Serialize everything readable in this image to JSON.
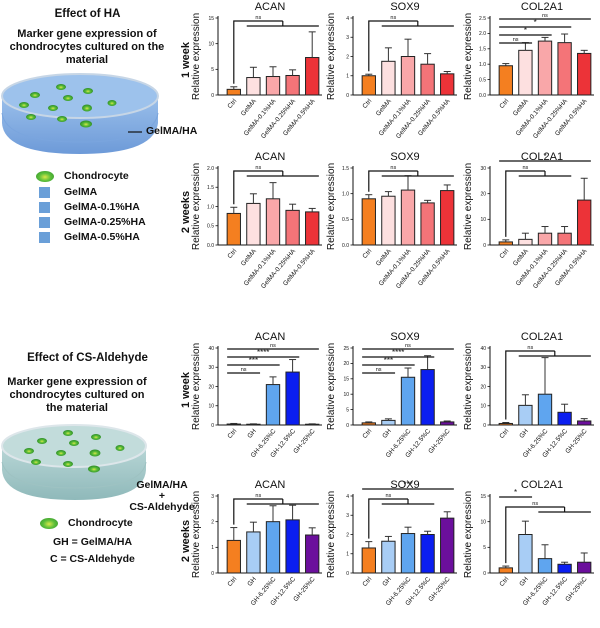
{
  "sections": [
    {
      "title": "Effect of HA",
      "subtitle": "Marker gene expression of chondrocytes cultured on the material",
      "dish_label": "GelMA/HA",
      "legend": [
        {
          "icon": "chondrocyte-icon",
          "label": "Chondrocyte"
        },
        {
          "icon": "square-icon",
          "label": "GelMA"
        },
        {
          "icon": "square-icon",
          "label": "GelMA-0.1%HA"
        },
        {
          "icon": "square-icon",
          "label": "GelMA-0.25%HA"
        },
        {
          "icon": "square-icon",
          "label": "GelMA-0.5%HA"
        }
      ],
      "row_labels": [
        "1 week",
        "2 weeks"
      ]
    },
    {
      "title": "Effect of CS-Aldehyde",
      "subtitle": "Marker gene expression of chondrocytes cultured on the material",
      "dish_label_lines": [
        "GelMA/HA",
        "+",
        "CS-Aldehyde"
      ],
      "legend": [
        {
          "icon": "chondrocyte-icon",
          "label": "Chondrocyte"
        }
      ],
      "definitions": [
        "GH = GelMA/HA",
        "C = CS-Aldehyde"
      ],
      "row_labels": [
        "1 week",
        "2 weeks"
      ]
    }
  ],
  "colors": {
    "ha_groups": [
      "#f47f20",
      "#fde0e0",
      "#f9a7a9",
      "#f47478",
      "#ec3338"
    ],
    "cs_groups": [
      "#f47f20",
      "#a8cdf5",
      "#5fa5ef",
      "#0b1ef0",
      "#6b0f9c"
    ]
  },
  "chart_data": [
    {
      "id": "ha-1w-acan",
      "type": "bar",
      "title": "ACAN",
      "ylabel": "Relative expression",
      "categories": [
        "Ctrl",
        "GelMA",
        "GelMA-0.1%HA",
        "GelMA-0.25%HA",
        "GelMA-0.5%HA"
      ],
      "values": [
        1.1,
        3.4,
        3.6,
        3.8,
        7.3
      ],
      "errors": [
        0.5,
        2.0,
        1.9,
        1.1,
        5.0
      ],
      "ylim": [
        0,
        15
      ],
      "yticks": [
        0,
        5,
        10,
        15
      ],
      "palette": "ha_groups",
      "annotations": [
        {
          "type": "bracket-group",
          "from": 0,
          "to": [
            1,
            4
          ],
          "label": "ns"
        }
      ]
    },
    {
      "id": "ha-1w-sox9",
      "type": "bar",
      "title": "SOX9",
      "ylabel": "Relative expression",
      "categories": [
        "Ctrl",
        "GelMA",
        "GelMA-0.1%HA",
        "GelMA-0.25%HA",
        "GelMA-0.5%HA"
      ],
      "values": [
        1.0,
        1.75,
        2.0,
        1.6,
        1.1
      ],
      "errors": [
        0.08,
        0.7,
        0.9,
        0.55,
        0.12
      ],
      "ylim": [
        0,
        4
      ],
      "yticks": [
        0,
        1,
        2,
        3,
        4
      ],
      "palette": "ha_groups",
      "annotations": [
        {
          "type": "bracket-group",
          "from": 0,
          "to": [
            1,
            4
          ],
          "label": "ns"
        }
      ]
    },
    {
      "id": "ha-1w-col2a1",
      "type": "bar",
      "title": "COL2A1",
      "ylabel": "Relative expression",
      "categories": [
        "Ctrl",
        "GelMA",
        "GelMA-0.1%HA",
        "GelMA-0.25%HA",
        "GelMA-0.5%HA"
      ],
      "values": [
        0.95,
        1.45,
        1.75,
        1.7,
        1.35
      ],
      "errors": [
        0.07,
        0.25,
        0.12,
        0.28,
        0.1
      ],
      "ylim": [
        0,
        2.5
      ],
      "yticks": [
        0,
        0.5,
        1.0,
        1.5,
        2.0,
        2.5
      ],
      "palette": "ha_groups",
      "annotations": [
        {
          "type": "line",
          "from": 0,
          "to": 1,
          "label": "ns"
        },
        {
          "type": "line",
          "from": 0,
          "to": 2,
          "label": "*"
        },
        {
          "type": "line",
          "from": 0,
          "to": 3,
          "label": "*"
        },
        {
          "type": "line",
          "from": 0,
          "to": 4,
          "label": "ns"
        }
      ]
    },
    {
      "id": "ha-2w-acan",
      "type": "bar",
      "title": "ACAN",
      "ylabel": "Relative expression",
      "categories": [
        "Ctrl",
        "GelMA",
        "GelMA-0.1%HA",
        "GelMA-0.25%HA",
        "GelMA-0.5%HA"
      ],
      "values": [
        0.82,
        1.08,
        1.2,
        0.9,
        0.86
      ],
      "errors": [
        0.16,
        0.25,
        0.42,
        0.16,
        0.09
      ],
      "ylim": [
        0,
        2.0
      ],
      "yticks": [
        0,
        0.5,
        1.0,
        1.5,
        2.0
      ],
      "palette": "ha_groups",
      "annotations": [
        {
          "type": "bracket-group",
          "from": 0,
          "to": [
            1,
            4
          ],
          "label": "ns"
        }
      ]
    },
    {
      "id": "ha-2w-sox9",
      "type": "bar",
      "title": "SOX9",
      "ylabel": "Relative expression",
      "categories": [
        "Ctrl",
        "GelMA",
        "GelMA-0.1%HA",
        "GelMA-0.25%HA",
        "GelMA-0.5%HA"
      ],
      "values": [
        0.9,
        0.95,
        1.07,
        0.82,
        1.06
      ],
      "errors": [
        0.08,
        0.09,
        0.28,
        0.05,
        0.11
      ],
      "ylim": [
        0,
        1.5
      ],
      "yticks": [
        0,
        0.5,
        1.0,
        1.5
      ],
      "palette": "ha_groups",
      "annotations": [
        {
          "type": "bracket-group",
          "from": 0,
          "to": [
            1,
            4
          ],
          "label": "ns"
        }
      ]
    },
    {
      "id": "ha-2w-col2a1",
      "type": "bar",
      "title": "COL2A1",
      "ylabel": "Relative expression",
      "categories": [
        "Ctrl",
        "GelMA",
        "GelMA-0.1%HA",
        "GelMA-0.25%HA",
        "GelMA-0.5%HA"
      ],
      "values": [
        1.2,
        2.2,
        4.6,
        4.6,
        17.5
      ],
      "errors": [
        0.8,
        2.4,
        2.6,
        2.6,
        8.5
      ],
      "ylim": [
        0,
        30
      ],
      "yticks": [
        0,
        10,
        20,
        30
      ],
      "palette": "ha_groups",
      "annotations": [
        {
          "type": "bracket-group",
          "from": 0,
          "to": [
            1,
            3
          ],
          "label": "ns"
        },
        {
          "type": "line",
          "from": 0,
          "to": 4,
          "label": "*"
        }
      ]
    },
    {
      "id": "cs-1w-acan",
      "type": "bar",
      "title": "ACAN",
      "ylabel": "Relative expression",
      "categories": [
        "Ctrl",
        "GH",
        "GH-6.25%C",
        "GH-12.5%C",
        "GH-25%C"
      ],
      "values": [
        0.5,
        0.4,
        21,
        27.5,
        0.4
      ],
      "errors": [
        0.3,
        0.2,
        4,
        6.5,
        0.2
      ],
      "ylim": [
        0,
        40
      ],
      "yticks": [
        0,
        10,
        20,
        30,
        40
      ],
      "palette": "cs_groups",
      "annotations": [
        {
          "type": "line",
          "from": 0,
          "to": 1,
          "label": "ns"
        },
        {
          "type": "line",
          "from": 0,
          "to": 2,
          "label": "***"
        },
        {
          "type": "line",
          "from": 0,
          "to": 3,
          "label": "****"
        },
        {
          "type": "line",
          "from": 0,
          "to": 4,
          "label": "ns"
        }
      ]
    },
    {
      "id": "cs-1w-sox9",
      "type": "bar",
      "title": "SOX9",
      "ylabel": "Relative expression",
      "categories": [
        "Ctrl",
        "GH",
        "GH-6.25%C",
        "GH-12.5%C",
        "GH-25%C"
      ],
      "values": [
        0.7,
        1.5,
        15.5,
        18,
        1.0
      ],
      "errors": [
        0.3,
        0.5,
        3,
        4.5,
        0.3
      ],
      "ylim": [
        0,
        25
      ],
      "yticks": [
        0,
        5,
        10,
        15,
        20,
        25
      ],
      "palette": "cs_groups",
      "annotations": [
        {
          "type": "line",
          "from": 0,
          "to": 1,
          "label": "ns"
        },
        {
          "type": "line",
          "from": 0,
          "to": 2,
          "label": "***"
        },
        {
          "type": "line",
          "from": 0,
          "to": 3,
          "label": "****"
        },
        {
          "type": "line",
          "from": 0,
          "to": 4,
          "label": "ns"
        }
      ]
    },
    {
      "id": "cs-1w-col2a1",
      "type": "bar",
      "title": "COL2A1",
      "ylabel": "Relative expression",
      "categories": [
        "Ctrl",
        "GH",
        "GH-6.25%C",
        "GH-12.5%C",
        "GH-25%C"
      ],
      "values": [
        0.8,
        10.2,
        16,
        6.6,
        2.1
      ],
      "errors": [
        0.5,
        5.5,
        19,
        4.2,
        1.2
      ],
      "ylim": [
        0,
        40
      ],
      "yticks": [
        0,
        10,
        20,
        30,
        40
      ],
      "palette": "cs_groups",
      "annotations": [
        {
          "type": "bracket-group",
          "from": 0,
          "to": [
            1,
            4
          ],
          "label": "ns"
        }
      ]
    },
    {
      "id": "cs-2w-acan",
      "type": "bar",
      "title": "ACAN",
      "ylabel": "Relative expression",
      "categories": [
        "Ctrl",
        "GH",
        "GH-6.25%C",
        "GH-12.5%C",
        "GH-25%C"
      ],
      "values": [
        1.27,
        1.6,
        2.0,
        2.07,
        1.48
      ],
      "errors": [
        0.5,
        0.38,
        0.62,
        0.57,
        0.28
      ],
      "ylim": [
        0,
        3
      ],
      "yticks": [
        0,
        1,
        2,
        3
      ],
      "palette": "cs_groups",
      "annotations": [
        {
          "type": "bracket-group",
          "from": 0,
          "to": [
            1,
            4
          ],
          "label": "ns"
        }
      ]
    },
    {
      "id": "cs-2w-sox9",
      "type": "bar",
      "title": "SOX9",
      "ylabel": "Relative expression",
      "categories": [
        "Ctrl",
        "GH",
        "GH-6.25%C",
        "GH-12.5%C",
        "GH-25%C"
      ],
      "values": [
        1.3,
        1.65,
        2.05,
        2.0,
        2.85
      ],
      "errors": [
        0.33,
        0.25,
        0.33,
        0.17,
        0.33
      ],
      "ylim": [
        0,
        4
      ],
      "yticks": [
        0,
        1,
        2,
        3,
        4
      ],
      "palette": "cs_groups",
      "annotations": [
        {
          "type": "bracket-group",
          "from": 0,
          "to": [
            1,
            3
          ],
          "label": "ns"
        },
        {
          "type": "line",
          "from": 0,
          "to": 4,
          "label": "***"
        }
      ]
    },
    {
      "id": "cs-2w-col2a1",
      "type": "bar",
      "title": "COL2A1",
      "ylabel": "Relative expression",
      "categories": [
        "Ctrl",
        "GH",
        "GH-6.25%C",
        "GH-12.5%C",
        "GH-25%C"
      ],
      "values": [
        1.0,
        7.5,
        2.8,
        1.7,
        2.1
      ],
      "errors": [
        0.35,
        2.6,
        2.7,
        0.4,
        1.8
      ],
      "ylim": [
        0,
        15
      ],
      "yticks": [
        0,
        5,
        10,
        15
      ],
      "palette": "cs_groups",
      "annotations": [
        {
          "type": "line",
          "from": 0,
          "to": 1,
          "label": "*"
        },
        {
          "type": "bracket-group",
          "from": 0,
          "to": [
            2,
            4
          ],
          "label": "ns"
        }
      ]
    }
  ]
}
